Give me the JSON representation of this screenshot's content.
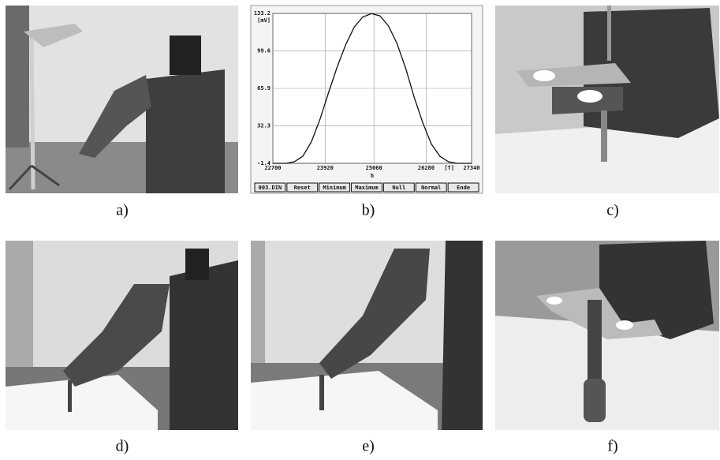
{
  "panels": [
    {
      "label": "a)"
    },
    {
      "label": "b)",
      "chart": {
        "type": "line",
        "y_unit": "[mV]",
        "x_unit": "[T]",
        "x_label": "h",
        "x": [
          22700,
          23000,
          23200,
          23400,
          23600,
          23800,
          24000,
          24200,
          24400,
          24600,
          24800,
          25000,
          25200,
          25400,
          25600,
          25800,
          26000,
          26200,
          26400,
          26600,
          26800,
          27000,
          27340
        ],
        "values": [
          -1.4,
          -1.4,
          0,
          5,
          18,
          38,
          62,
          85,
          105,
          121,
          130,
          133,
          131,
          122,
          106,
          84,
          58,
          35,
          16,
          5,
          0,
          -1.4,
          -1.4
        ],
        "color": "#111111",
        "xlim": [
          22700,
          27340
        ],
        "ylim": [
          -1.4,
          133.2
        ],
        "xticks": [
          22700,
          23920,
          25060,
          26280,
          27340
        ],
        "yticks": [
          -1.4,
          32.3,
          65.9,
          99.6,
          133.2
        ],
        "grid": true,
        "buttons": [
          "003.DIN",
          "Reset",
          "Minimum",
          "Maximum",
          "Null",
          "Normal",
          "Ende"
        ]
      }
    },
    {
      "label": "c)"
    },
    {
      "label": "d)"
    },
    {
      "label": "e)"
    },
    {
      "label": "f)"
    }
  ]
}
